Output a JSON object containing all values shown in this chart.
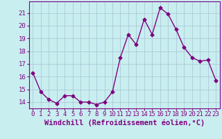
{
  "x": [
    0,
    1,
    2,
    3,
    4,
    5,
    6,
    7,
    8,
    9,
    10,
    11,
    12,
    13,
    14,
    15,
    16,
    17,
    18,
    19,
    20,
    21,
    22,
    23
  ],
  "y": [
    16.3,
    14.8,
    14.2,
    13.9,
    14.5,
    14.5,
    14.0,
    14.0,
    13.8,
    14.0,
    14.8,
    17.5,
    19.3,
    18.5,
    20.5,
    19.3,
    21.4,
    20.9,
    19.7,
    18.3,
    17.5,
    17.2,
    17.3,
    15.7
  ],
  "line_color": "#800080",
  "marker": "D",
  "marker_size": 2.5,
  "bg_color": "#c8eef0",
  "grid_color": "#aec8d8",
  "xlabel": "Windchill (Refroidissement éolien,°C)",
  "ylim": [
    13.5,
    21.9
  ],
  "xlim": [
    -0.5,
    23.5
  ],
  "yticks": [
    14,
    15,
    16,
    17,
    18,
    19,
    20,
    21
  ],
  "xticks": [
    0,
    1,
    2,
    3,
    4,
    5,
    6,
    7,
    8,
    9,
    10,
    11,
    12,
    13,
    14,
    15,
    16,
    17,
    18,
    19,
    20,
    21,
    22,
    23
  ],
  "label_fontsize": 7.5,
  "tick_fontsize": 6.5
}
